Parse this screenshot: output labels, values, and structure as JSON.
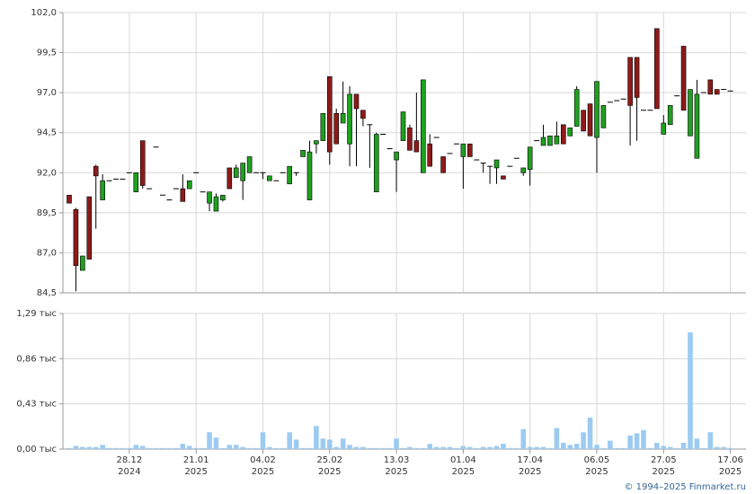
{
  "chart_data": [
    {
      "type": "candlestick",
      "categories": [
        null,
        null,
        null,
        null,
        null,
        null,
        null,
        null,
        null,
        "28.12",
        null,
        null,
        null,
        null,
        null,
        null,
        null,
        null,
        null,
        "21.01",
        null,
        null,
        null,
        null,
        null,
        null,
        null,
        null,
        null,
        "04.02",
        null,
        null,
        null,
        null,
        null,
        null,
        null,
        null,
        null,
        "25.02",
        null,
        null,
        null,
        null,
        null,
        null,
        null,
        null,
        null,
        "13.03",
        null,
        null,
        null,
        null,
        null,
        null,
        null,
        null,
        null,
        "01.04",
        null,
        null,
        null,
        null,
        null,
        null,
        null,
        null,
        null,
        "17.04",
        null,
        null,
        null,
        null,
        null,
        null,
        null,
        null,
        null,
        "06.05",
        null,
        null,
        null,
        null,
        null,
        null,
        null,
        null,
        null,
        "27.05",
        null,
        null,
        null,
        null,
        null,
        null,
        null,
        null,
        null,
        "17.06"
      ],
      "years": [
        null,
        null,
        null,
        null,
        null,
        null,
        null,
        null,
        null,
        "2024",
        null,
        null,
        null,
        null,
        null,
        null,
        null,
        null,
        null,
        "2025",
        null,
        null,
        null,
        null,
        null,
        null,
        null,
        null,
        null,
        "2025",
        null,
        null,
        null,
        null,
        null,
        null,
        null,
        null,
        null,
        "2025",
        null,
        null,
        null,
        null,
        null,
        null,
        null,
        null,
        null,
        "2025",
        null,
        null,
        null,
        null,
        null,
        null,
        null,
        null,
        null,
        "2025",
        null,
        null,
        null,
        null,
        null,
        null,
        null,
        null,
        null,
        "2025",
        null,
        null,
        null,
        null,
        null,
        null,
        null,
        null,
        null,
        "2025",
        null,
        null,
        null,
        null,
        null,
        null,
        null,
        null,
        null,
        "2025",
        null,
        null,
        null,
        null,
        null,
        null,
        null,
        null,
        null,
        "2025"
      ],
      "open": [
        90.6,
        89.7,
        85.9,
        90.5,
        92.4,
        90.3,
        91.5,
        91.6,
        91.6,
        92.0,
        90.8,
        94.0,
        91.0,
        93.6,
        90.6,
        90.3,
        91.0,
        91.0,
        91.0,
        92.0,
        90.8,
        90.1,
        89.6,
        90.3,
        92.3,
        91.7,
        91.5,
        92.0,
        92.0,
        92.0,
        91.5,
        91.5,
        92.0,
        91.3,
        92.0,
        93.0,
        90.3,
        93.8,
        94.0,
        98.0,
        95.7,
        95.1,
        93.8,
        96.9,
        95.9,
        95.0,
        90.8,
        94.4,
        93.5,
        92.8,
        94.0,
        94.8,
        94.0,
        92.0,
        93.8,
        94.2,
        93.0,
        93.2,
        93.8,
        93.0,
        93.8,
        92.8,
        92.6,
        92.4,
        92.3,
        91.8,
        92.4,
        92.9,
        92.0,
        92.2,
        94.0,
        93.7,
        93.7,
        93.8,
        95.0,
        94.3,
        94.9,
        95.9,
        96.3,
        94.2,
        94.8,
        96.4,
        96.5,
        96.6,
        99.2,
        99.2,
        95.9,
        95.9,
        101.0,
        94.4,
        95.0,
        96.8,
        99.9,
        94.3,
        92.9,
        97.0,
        97.8,
        97.2,
        97.2,
        97.1
      ],
      "high": [
        90.6,
        89.8,
        86.8,
        90.5,
        92.5,
        91.9,
        91.5,
        91.6,
        91.6,
        92.0,
        92.0,
        94.0,
        91.0,
        93.6,
        90.6,
        90.3,
        91.0,
        91.9,
        91.5,
        92.0,
        90.8,
        90.8,
        90.7,
        90.6,
        92.3,
        92.5,
        92.6,
        93.0,
        92.0,
        92.0,
        91.8,
        91.5,
        92.0,
        92.4,
        92.0,
        93.4,
        94.0,
        94.0,
        95.7,
        98.0,
        96.0,
        97.7,
        97.4,
        96.9,
        95.9,
        95.0,
        94.5,
        94.4,
        93.5,
        93.3,
        95.8,
        95.0,
        97.0,
        97.8,
        94.4,
        94.2,
        93.0,
        93.2,
        93.8,
        93.8,
        93.8,
        92.8,
        92.6,
        92.4,
        92.8,
        91.8,
        92.4,
        92.9,
        92.3,
        93.6,
        94.0,
        95.0,
        94.3,
        95.2,
        95.0,
        94.8,
        97.4,
        95.9,
        96.3,
        97.7,
        96.2,
        96.4,
        96.5,
        96.6,
        99.2,
        99.2,
        95.9,
        95.9,
        101.0,
        95.6,
        96.2,
        96.8,
        99.9,
        97.2,
        97.8,
        97.0,
        97.8,
        97.2,
        97.2,
        97.1
      ],
      "low": [
        90.1,
        84.6,
        85.9,
        86.6,
        88.5,
        90.3,
        91.5,
        91.6,
        91.6,
        92.0,
        90.8,
        91.0,
        91.0,
        93.6,
        90.6,
        90.3,
        91.0,
        90.2,
        91.0,
        92.0,
        90.8,
        89.6,
        89.6,
        90.2,
        91.0,
        91.7,
        90.3,
        92.0,
        92.0,
        91.6,
        91.5,
        91.5,
        92.0,
        91.3,
        91.8,
        93.0,
        90.3,
        93.2,
        94.0,
        92.5,
        93.8,
        95.1,
        92.4,
        92.4,
        94.9,
        92.3,
        90.8,
        94.4,
        93.5,
        90.8,
        94.0,
        93.4,
        93.3,
        92.0,
        92.4,
        94.2,
        92.0,
        93.2,
        93.8,
        91.0,
        93.0,
        92.8,
        92.0,
        91.3,
        91.3,
        91.6,
        92.4,
        92.9,
        91.8,
        91.2,
        94.0,
        93.7,
        93.7,
        93.8,
        93.8,
        94.3,
        94.9,
        94.6,
        94.3,
        92.0,
        94.8,
        96.4,
        96.5,
        96.6,
        93.7,
        94.0,
        95.9,
        95.9,
        96.0,
        94.4,
        95.0,
        96.8,
        95.9,
        94.3,
        92.9,
        97.0,
        96.9,
        96.9,
        97.2,
        97.1
      ],
      "close": [
        90.1,
        86.2,
        86.8,
        86.6,
        91.8,
        91.5,
        91.5,
        91.6,
        91.6,
        92.0,
        92.0,
        91.2,
        91.0,
        93.6,
        90.6,
        90.3,
        91.0,
        90.2,
        91.5,
        92.0,
        90.8,
        90.8,
        90.5,
        90.6,
        91.0,
        92.3,
        92.6,
        93.0,
        92.0,
        92.0,
        91.8,
        91.5,
        92.0,
        92.4,
        92.0,
        93.4,
        93.3,
        94.0,
        95.7,
        93.3,
        93.8,
        95.7,
        96.9,
        96.0,
        95.4,
        95.0,
        94.4,
        94.4,
        93.5,
        93.3,
        95.8,
        93.4,
        93.3,
        97.8,
        92.4,
        94.2,
        92.0,
        93.2,
        93.8,
        93.8,
        93.0,
        92.8,
        92.6,
        92.4,
        92.8,
        91.6,
        92.4,
        92.9,
        92.3,
        93.6,
        94.0,
        94.2,
        94.3,
        94.3,
        93.8,
        94.8,
        97.2,
        94.6,
        94.3,
        97.7,
        96.2,
        96.4,
        96.5,
        96.6,
        96.2,
        96.7,
        95.9,
        95.9,
        96.0,
        95.1,
        96.2,
        96.8,
        95.9,
        97.2,
        96.9,
        97.0,
        96.9,
        96.9,
        97.2,
        97.1
      ],
      "up_color": "#1fa01f",
      "down_color": "#8e1a1a",
      "ylim": [
        84.5,
        102
      ],
      "yticks": [
        {
          "value": 84.5,
          "label": "84,5"
        },
        {
          "value": 87,
          "label": "87,0"
        },
        {
          "value": 89.5,
          "label": "89,5"
        },
        {
          "value": 92,
          "label": "92,0"
        },
        {
          "value": 94.5,
          "label": "94,5"
        },
        {
          "value": 97,
          "label": "97,0"
        },
        {
          "value": 99.5,
          "label": "99,5"
        },
        {
          "value": 102,
          "label": "102,0"
        }
      ],
      "grid": true
    },
    {
      "type": "bar",
      "values": [
        0.01,
        0.03,
        0.02,
        0.02,
        0.02,
        0.04,
        0.01,
        0.01,
        0.01,
        0.01,
        0.04,
        0.03,
        0.01,
        0.01,
        0.01,
        0.01,
        0.01,
        0.05,
        0.03,
        0.01,
        0.01,
        0.16,
        0.11,
        0.01,
        0.04,
        0.04,
        0.02,
        0.01,
        0.01,
        0.16,
        0.02,
        0.01,
        0.01,
        0.16,
        0.09,
        0.01,
        0.01,
        0.22,
        0.1,
        0.09,
        0.02,
        0.1,
        0.04,
        0.02,
        0.02,
        0.01,
        0.01,
        0.01,
        0.01,
        0.1,
        0.01,
        0.02,
        0.01,
        0.01,
        0.05,
        0.02,
        0.02,
        0.02,
        0.01,
        0.03,
        0.02,
        0.01,
        0.02,
        0.02,
        0.03,
        0.05,
        0.01,
        0.01,
        0.19,
        0.02,
        0.02,
        0.02,
        0.01,
        0.2,
        0.06,
        0.04,
        0.05,
        0.16,
        0.3,
        0.04,
        0.01,
        0.08,
        0.01,
        0.01,
        0.13,
        0.15,
        0.18,
        0.01,
        0.06,
        0.03,
        0.02,
        0.01,
        0.06,
        1.11,
        0.1,
        0.01,
        0.16,
        0.02,
        0.02,
        0.01
      ],
      "color": "#9ccbf2",
      "ylim": [
        0,
        1.29
      ],
      "yticks": [
        {
          "value": 0,
          "label": "0,00 тыс"
        },
        {
          "value": 0.43,
          "label": "0,43 тыс"
        },
        {
          "value": 0.86,
          "label": "0,86 тыс"
        },
        {
          "value": 1.29,
          "label": "1,29 тыс"
        }
      ],
      "grid": true
    }
  ],
  "copyright": "© 1994–2025 Finmarket.ru"
}
